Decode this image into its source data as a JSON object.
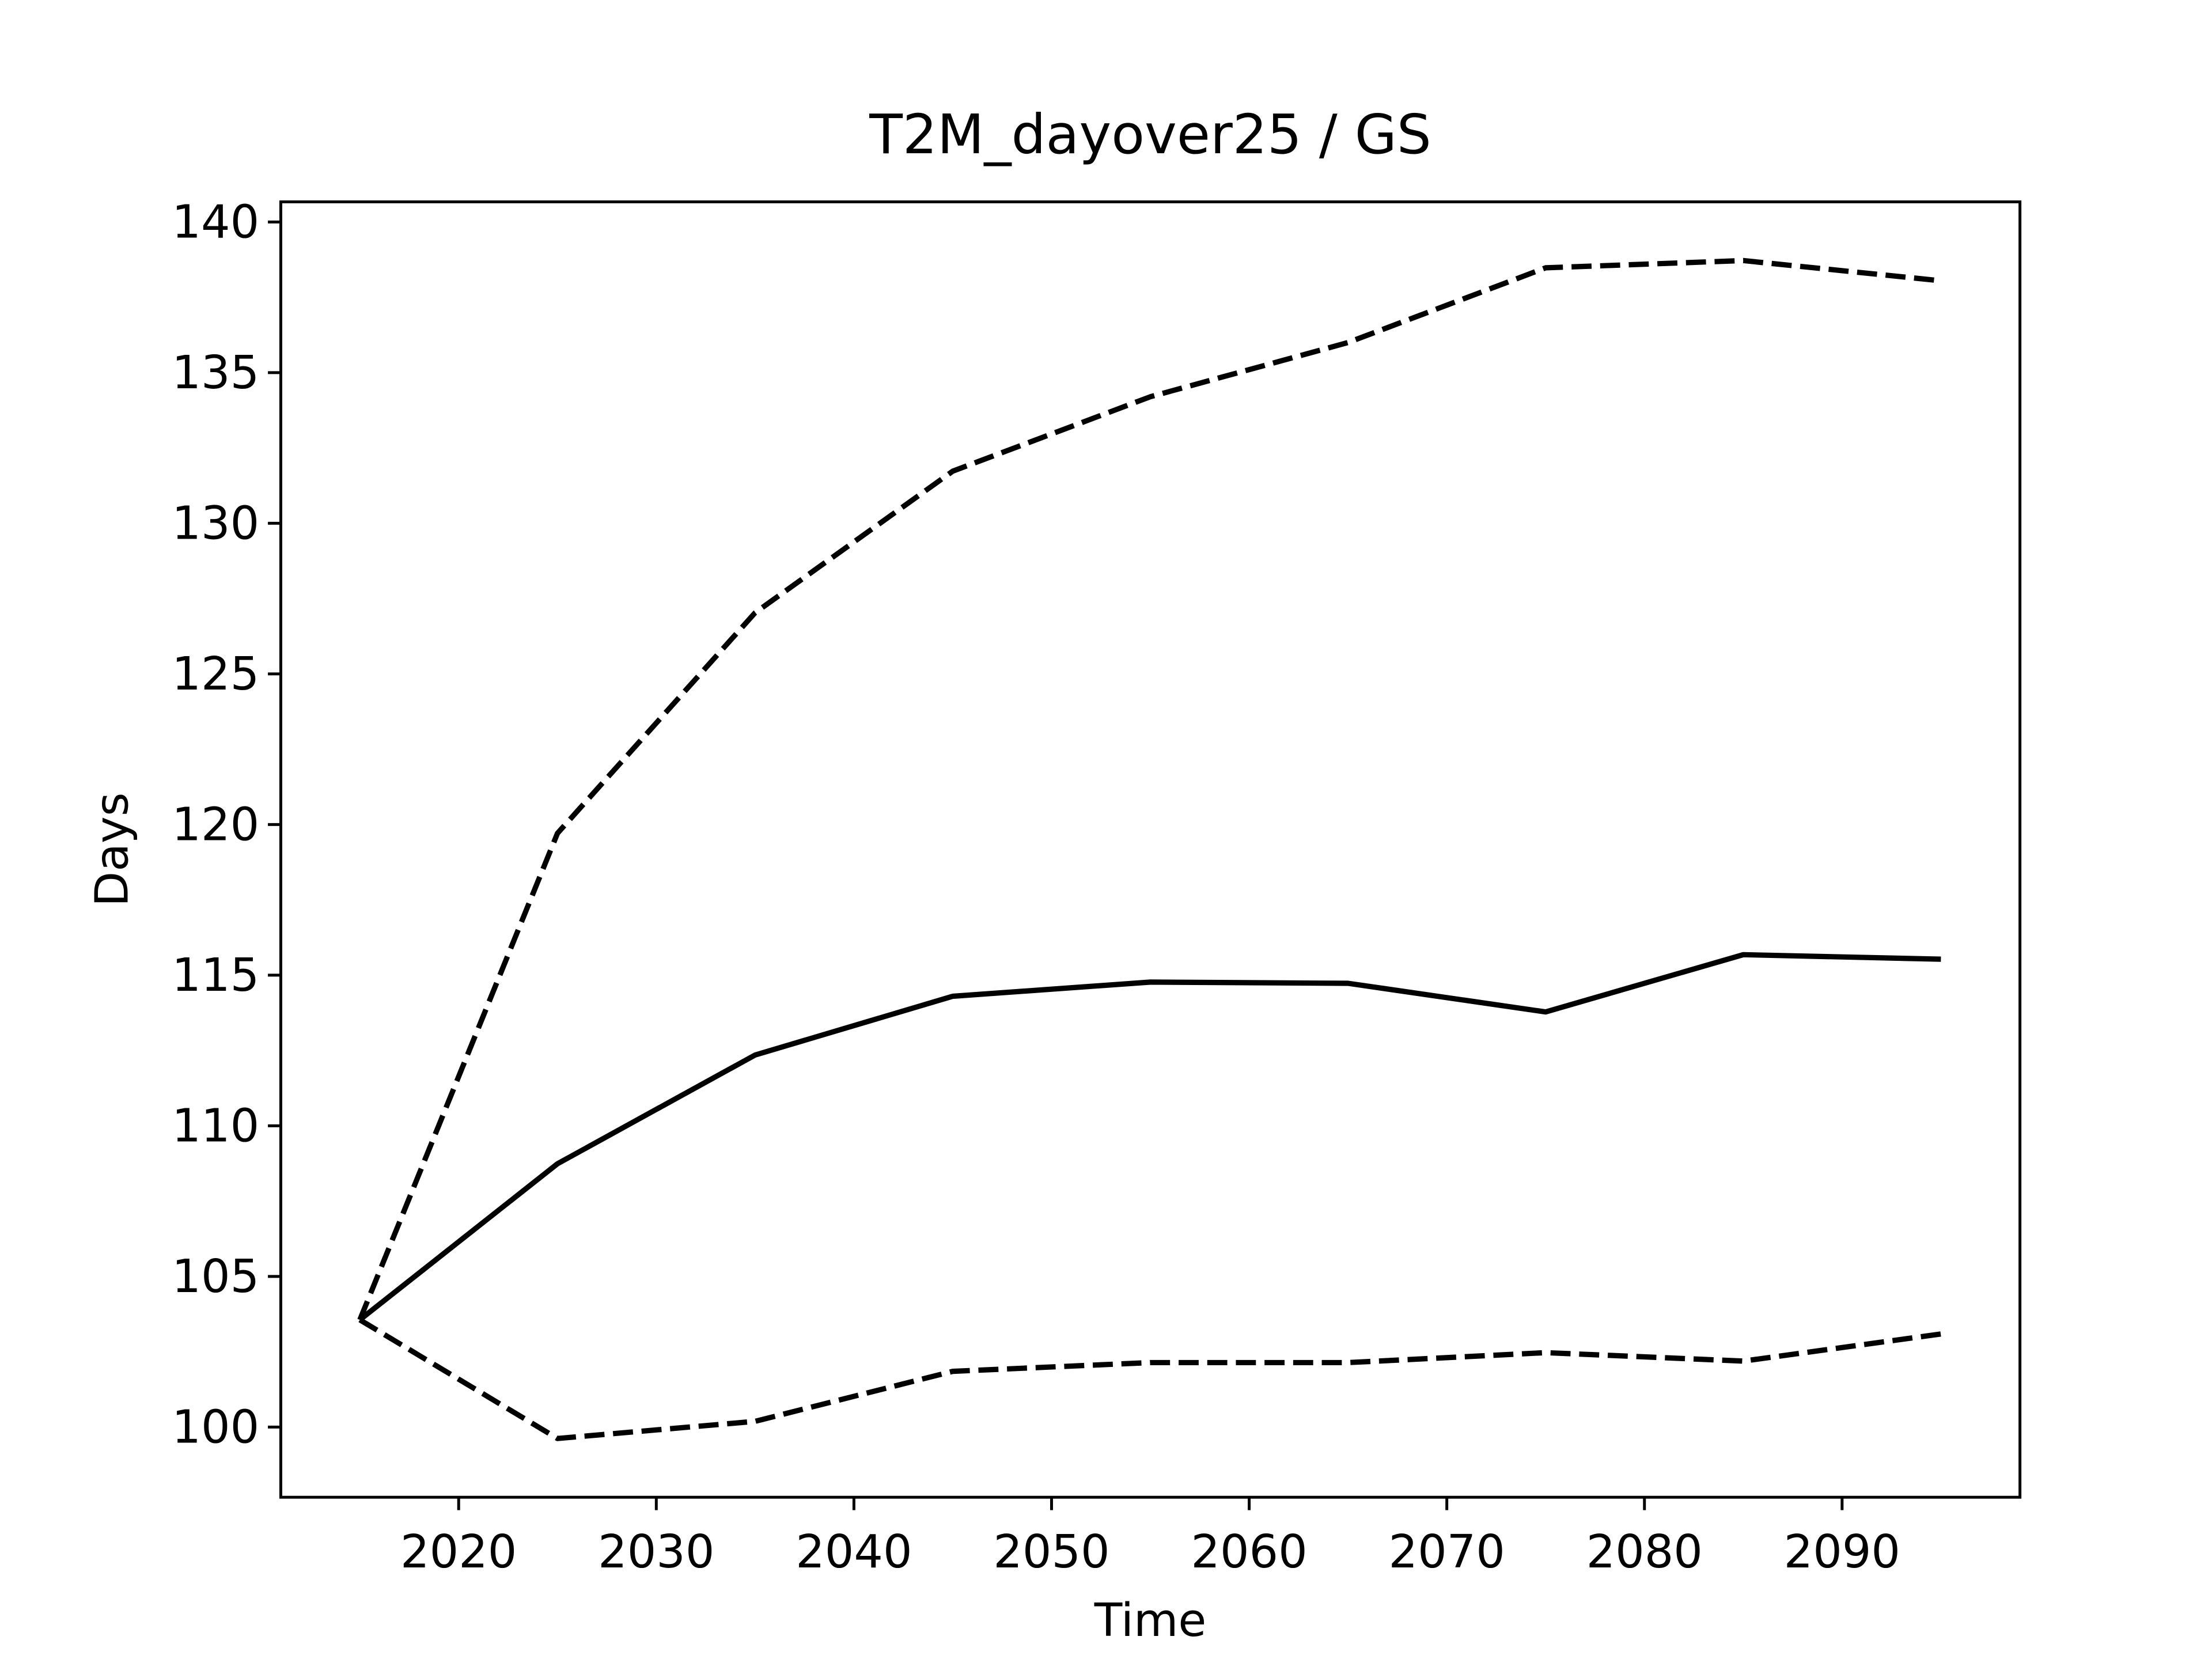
{
  "chart_data": {
    "type": "line",
    "title": "T2M_dayover25 / GS",
    "xlabel": "Time",
    "ylabel": "Days",
    "x": [
      2015,
      2025,
      2035,
      2045,
      2055,
      2065,
      2075,
      2085,
      2095
    ],
    "series": [
      {
        "color": "#000000",
        "dashed": false,
        "values": [
          103.56,
          108.74,
          112.35,
          114.3,
          114.77,
          114.73,
          113.78,
          115.68,
          115.53
        ]
      },
      {
        "color": "#000000",
        "dashed": true,
        "values": [
          103.56,
          119.71,
          127.03,
          131.73,
          134.2,
          136.0,
          138.48,
          138.72,
          138.05
        ]
      },
      {
        "color": "#000000",
        "dashed": true,
        "values": [
          103.56,
          99.62,
          100.19,
          101.85,
          102.14,
          102.14,
          102.47,
          102.19,
          103.09
        ]
      }
    ],
    "xlim": [
      2011,
      2099
    ],
    "xticks": [
      2020,
      2030,
      2040,
      2050,
      2060,
      2070,
      2080,
      2090
    ],
    "ylim": [
      97.67,
      140.67
    ],
    "yticks": [
      100,
      105,
      110,
      115,
      120,
      125,
      130,
      135,
      140
    ],
    "grid": false
  }
}
